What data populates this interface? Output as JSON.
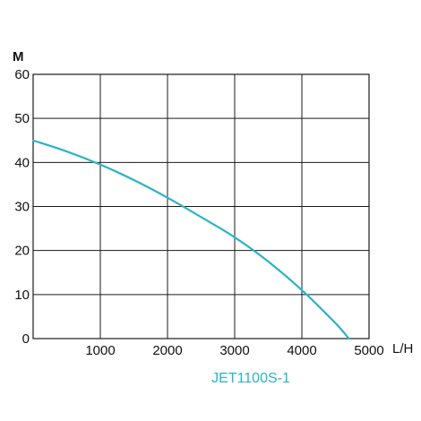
{
  "chart_data": {
    "type": "line",
    "title": "",
    "xlabel": "L/H",
    "ylabel": "M",
    "xlim": [
      0,
      5000
    ],
    "ylim": [
      0,
      60
    ],
    "x_ticks": [
      1000,
      2000,
      3000,
      4000,
      5000
    ],
    "y_ticks": [
      0,
      10,
      20,
      30,
      40,
      50,
      60
    ],
    "grid": true,
    "series": [
      {
        "name": "JET1100S-1",
        "color": "#2bb3c6",
        "x": [
          0,
          500,
          1000,
          1500,
          2000,
          2500,
          3000,
          3500,
          4000,
          4500,
          4700
        ],
        "y": [
          45,
          42.5,
          39.5,
          36,
          32,
          27.6,
          23,
          17.5,
          11,
          3.5,
          0
        ]
      }
    ]
  }
}
